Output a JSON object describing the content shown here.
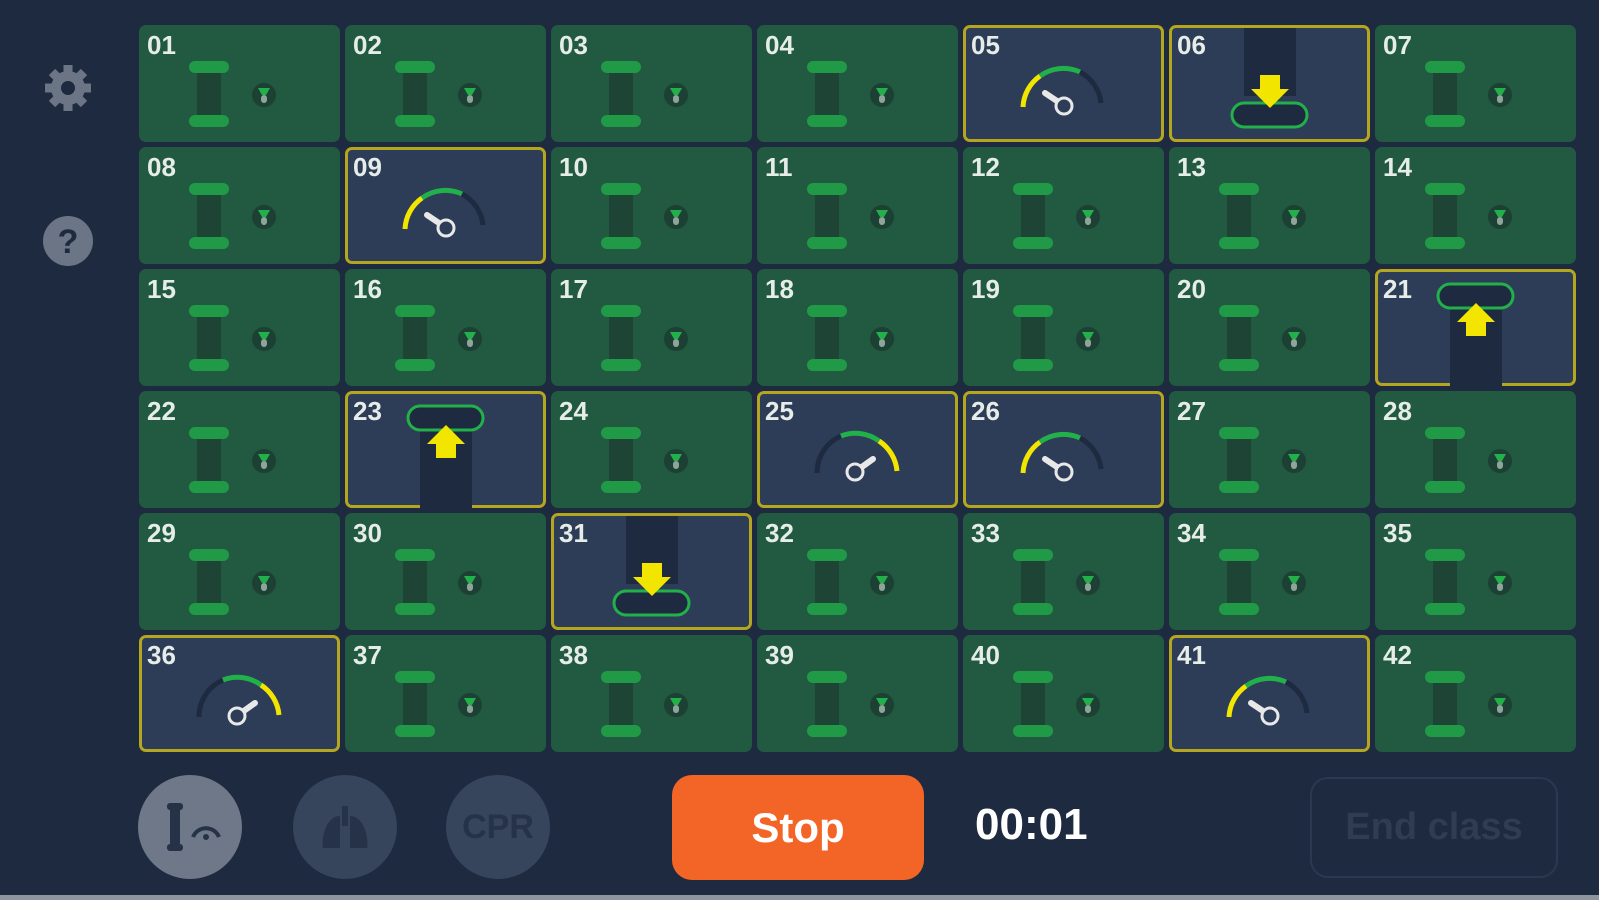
{
  "sidebar": {
    "icons": [
      "gear-icon",
      "help-icon"
    ]
  },
  "colors": {
    "cell_ok": "#215a40",
    "cell_alert": "#2d3c57",
    "alert_border": "#b5a61f",
    "green": "#22b04a",
    "yellow": "#f2e600",
    "stop": "#f26527"
  },
  "cells": [
    {
      "num": "01",
      "state": "normal"
    },
    {
      "num": "02",
      "state": "normal"
    },
    {
      "num": "03",
      "state": "normal"
    },
    {
      "num": "04",
      "state": "normal"
    },
    {
      "num": "05",
      "state": "gauge-low"
    },
    {
      "num": "06",
      "state": "down"
    },
    {
      "num": "07",
      "state": "normal"
    },
    {
      "num": "08",
      "state": "normal"
    },
    {
      "num": "09",
      "state": "gauge-low"
    },
    {
      "num": "10",
      "state": "normal"
    },
    {
      "num": "11",
      "state": "normal"
    },
    {
      "num": "12",
      "state": "normal"
    },
    {
      "num": "13",
      "state": "normal"
    },
    {
      "num": "14",
      "state": "normal"
    },
    {
      "num": "15",
      "state": "normal"
    },
    {
      "num": "16",
      "state": "normal"
    },
    {
      "num": "17",
      "state": "normal"
    },
    {
      "num": "18",
      "state": "normal"
    },
    {
      "num": "19",
      "state": "normal"
    },
    {
      "num": "20",
      "state": "normal"
    },
    {
      "num": "21",
      "state": "up"
    },
    {
      "num": "22",
      "state": "normal"
    },
    {
      "num": "23",
      "state": "up"
    },
    {
      "num": "24",
      "state": "normal"
    },
    {
      "num": "25",
      "state": "gauge-high"
    },
    {
      "num": "26",
      "state": "gauge-low"
    },
    {
      "num": "27",
      "state": "normal"
    },
    {
      "num": "28",
      "state": "normal"
    },
    {
      "num": "29",
      "state": "normal"
    },
    {
      "num": "30",
      "state": "normal"
    },
    {
      "num": "31",
      "state": "down"
    },
    {
      "num": "32",
      "state": "normal"
    },
    {
      "num": "33",
      "state": "normal"
    },
    {
      "num": "34",
      "state": "normal"
    },
    {
      "num": "35",
      "state": "normal"
    },
    {
      "num": "36",
      "state": "gauge-high"
    },
    {
      "num": "37",
      "state": "normal"
    },
    {
      "num": "38",
      "state": "normal"
    },
    {
      "num": "39",
      "state": "normal"
    },
    {
      "num": "40",
      "state": "normal"
    },
    {
      "num": "41",
      "state": "gauge-low"
    },
    {
      "num": "42",
      "state": "normal"
    }
  ],
  "footer": {
    "mode_buttons": [
      "compression-mode",
      "ventilation-mode",
      "CPR"
    ],
    "stop_label": "Stop",
    "timer": "00:01",
    "end_class_label": "End class"
  }
}
